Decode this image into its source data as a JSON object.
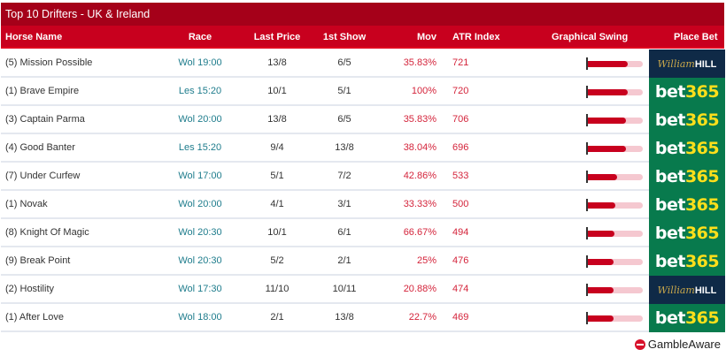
{
  "title": "Top 10 Drifters - UK & Ireland",
  "columns": {
    "horse_name": "Horse Name",
    "race": "Race",
    "last_price": "Last Price",
    "first_show": "1st Show",
    "mov": "Mov",
    "atr_index": "ATR Index",
    "graphical_swing": "Graphical Swing",
    "place_bet": "Place Bet"
  },
  "colors": {
    "title_bg": "#a50019",
    "header_bg": "#c8001e",
    "race_link": "#1e7c8c",
    "mov_text": "#d4243b",
    "swing_fill": "#c8001e",
    "swing_track": "#f5c8d0",
    "william_hill_bg": "#0f2a47",
    "bet365_bg": "#087a4d",
    "bet365_yellow": "#ffdf1b"
  },
  "bookmakers": {
    "william_hill": {
      "script": "William",
      "bold": "HILL"
    },
    "bet365": {
      "bet": "bet",
      "num": "365"
    }
  },
  "rows": [
    {
      "horse": "(5) Mission Possible",
      "race": "Wol 19:00",
      "last_price": "13/8",
      "first_show": "6/5",
      "mov": "35.83%",
      "atr": "721",
      "swing_pct": 72,
      "bookmaker": "william_hill"
    },
    {
      "horse": "(1) Brave Empire",
      "race": "Les 15:20",
      "last_price": "10/1",
      "first_show": "5/1",
      "mov": "100%",
      "atr": "720",
      "swing_pct": 72,
      "bookmaker": "bet365"
    },
    {
      "horse": "(3) Captain Parma",
      "race": "Wol 20:00",
      "last_price": "13/8",
      "first_show": "6/5",
      "mov": "35.83%",
      "atr": "706",
      "swing_pct": 70,
      "bookmaker": "bet365"
    },
    {
      "horse": "(4) Good Banter",
      "race": "Les 15:20",
      "last_price": "9/4",
      "first_show": "13/8",
      "mov": "38.04%",
      "atr": "696",
      "swing_pct": 69,
      "bookmaker": "bet365"
    },
    {
      "horse": "(7) Under Curfew",
      "race": "Wol 17:00",
      "last_price": "5/1",
      "first_show": "7/2",
      "mov": "42.86%",
      "atr": "533",
      "swing_pct": 53,
      "bookmaker": "bet365"
    },
    {
      "horse": "(1) Novak",
      "race": "Wol 20:00",
      "last_price": "4/1",
      "first_show": "3/1",
      "mov": "33.33%",
      "atr": "500",
      "swing_pct": 50,
      "bookmaker": "bet365"
    },
    {
      "horse": "(8) Knight Of Magic",
      "race": "Wol 20:30",
      "last_price": "10/1",
      "first_show": "6/1",
      "mov": "66.67%",
      "atr": "494",
      "swing_pct": 49,
      "bookmaker": "bet365"
    },
    {
      "horse": "(9) Break Point",
      "race": "Wol 20:30",
      "last_price": "5/2",
      "first_show": "2/1",
      "mov": "25%",
      "atr": "476",
      "swing_pct": 47,
      "bookmaker": "bet365"
    },
    {
      "horse": "(2) Hostility",
      "race": "Wol 17:30",
      "last_price": "11/10",
      "first_show": "10/11",
      "mov": "20.88%",
      "atr": "474",
      "swing_pct": 47,
      "bookmaker": "william_hill"
    },
    {
      "horse": "(1) After Love",
      "race": "Wol 18:00",
      "last_price": "2/1",
      "first_show": "13/8",
      "mov": "22.7%",
      "atr": "469",
      "swing_pct": 46,
      "bookmaker": "bet365"
    }
  ],
  "footer": {
    "gamble_aware": "GambleAware"
  }
}
